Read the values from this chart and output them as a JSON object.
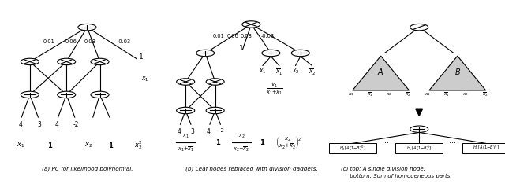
{
  "bg_color": "#ffffff",
  "fig_width": 6.4,
  "fig_height": 2.34,
  "caption_a": "(a) PC for likelihood polynomial.",
  "caption_b": "(b) Leaf nodes replaced with division gadgets.",
  "caption_c_line1": "(c) top: A single division node.",
  "caption_c_line2": "     bottom: Sum of homogeneous parts."
}
